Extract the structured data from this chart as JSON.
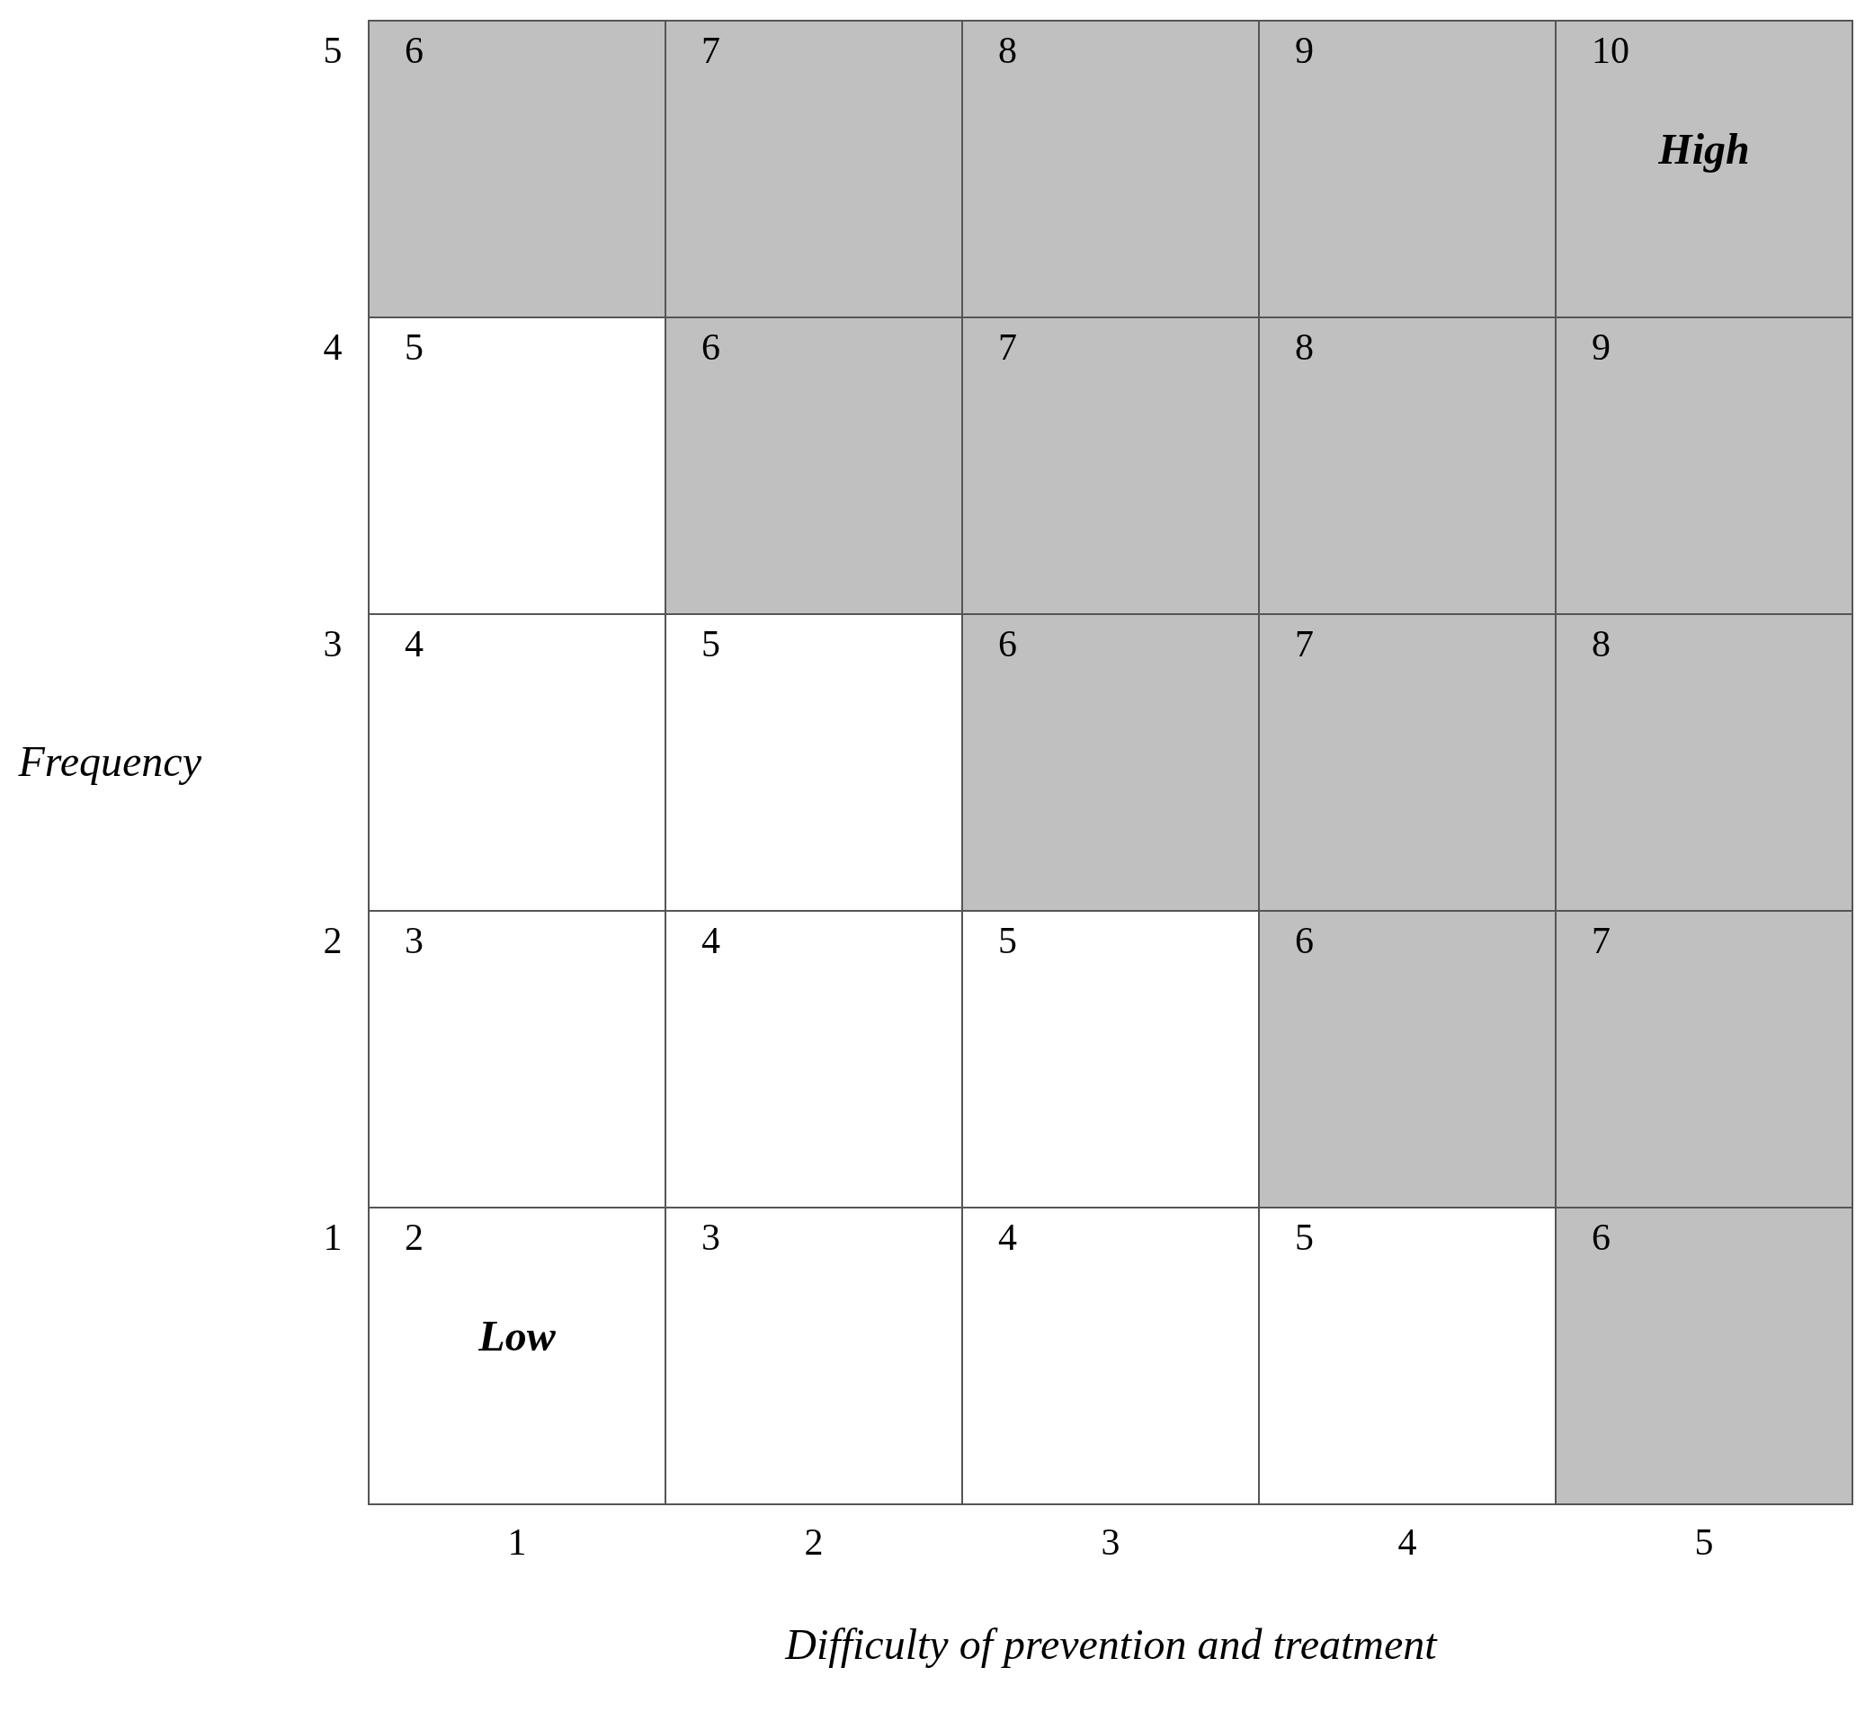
{
  "chart_data": {
    "type": "heatmap",
    "xlabel": "Difficulty of prevention and treatment",
    "ylabel": "Frequency",
    "categories": [
      "1",
      "2",
      "3",
      "4",
      "5"
    ],
    "y_categories": [
      "5",
      "4",
      "3",
      "2",
      "1"
    ],
    "cells": [
      [
        6,
        7,
        8,
        9,
        10
      ],
      [
        5,
        6,
        7,
        8,
        9
      ],
      [
        4,
        5,
        6,
        7,
        8
      ],
      [
        3,
        4,
        5,
        6,
        7
      ],
      [
        2,
        3,
        4,
        5,
        6
      ]
    ],
    "colors": [
      [
        "#c0c0c0",
        "#c0c0c0",
        "#c0c0c0",
        "#c0c0c0",
        "#c0c0c0"
      ],
      [
        "#ffffff",
        "#c0c0c0",
        "#c0c0c0",
        "#c0c0c0",
        "#c0c0c0"
      ],
      [
        "#ffffff",
        "#ffffff",
        "#c0c0c0",
        "#c0c0c0",
        "#c0c0c0"
      ],
      [
        "#ffffff",
        "#ffffff",
        "#ffffff",
        "#c0c0c0",
        "#c0c0c0"
      ],
      [
        "#ffffff",
        "#ffffff",
        "#ffffff",
        "#ffffff",
        "#c0c0c0"
      ]
    ],
    "data_labels": true,
    "annotations": [
      "High",
      "Low"
    ]
  }
}
